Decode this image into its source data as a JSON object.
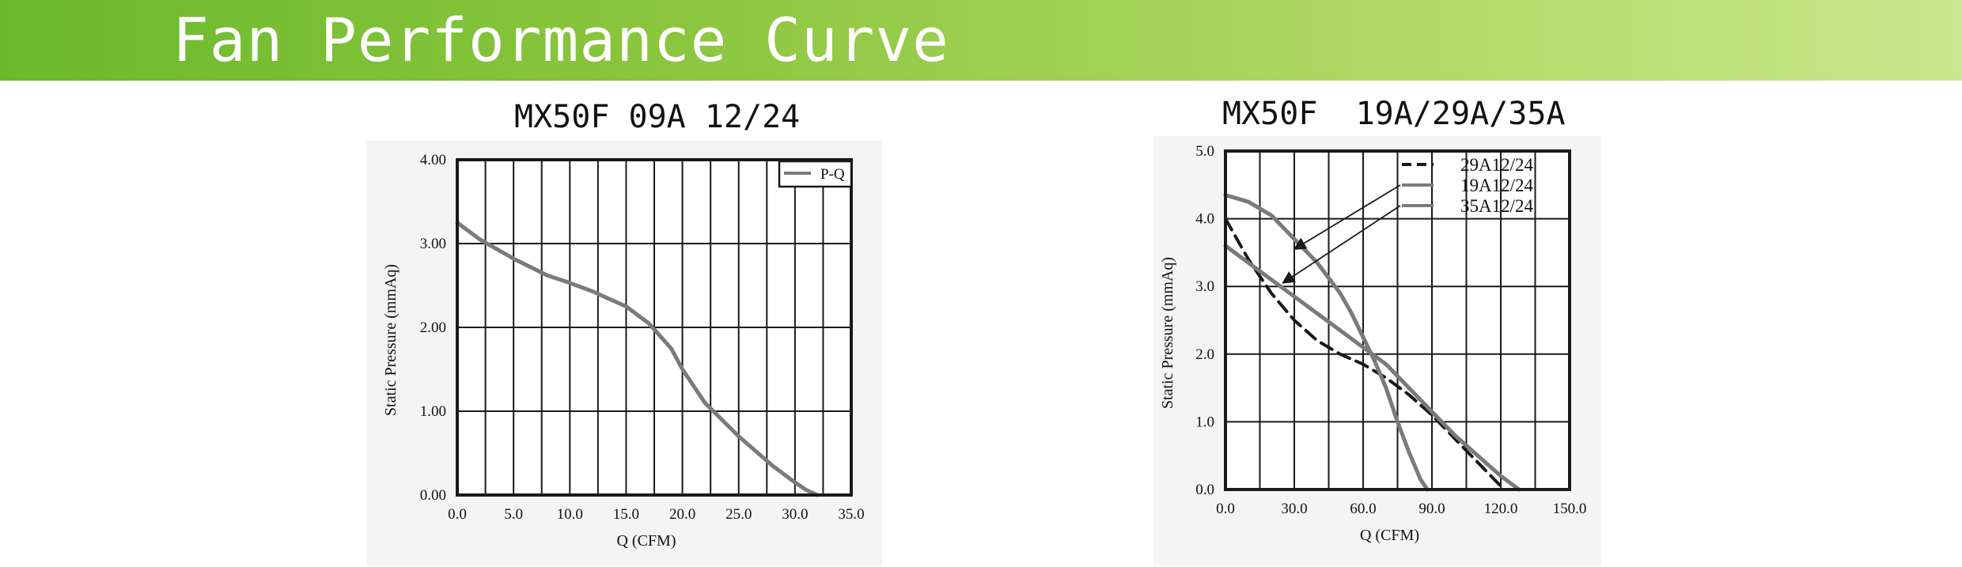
{
  "page": {
    "title": "Fan Performance Curve",
    "banner_color": "#8cc63f"
  },
  "chart_data": [
    {
      "type": "line",
      "title": "MX50F 09A 12/24",
      "xlabel": "Q (CFM)",
      "ylabel": "Static Pressure (mmAq)",
      "xlim": [
        0,
        35
      ],
      "ylim": [
        0,
        4
      ],
      "xticks": [
        "0.0",
        "5.0",
        "10.0",
        "15.0",
        "20.0",
        "25.0",
        "30.0",
        "35.0"
      ],
      "yticks": [
        "0.00",
        "1.00",
        "2.00",
        "3.00",
        "4.00"
      ],
      "grid": true,
      "legend": "top-right",
      "series": [
        {
          "name": "P-Q",
          "color": "#7a7a7a",
          "dash": "solid",
          "x": [
            0,
            2,
            5,
            8,
            10,
            12,
            15,
            17,
            19,
            20,
            22,
            25,
            28,
            30,
            31,
            32
          ],
          "y": [
            3.25,
            3.05,
            2.82,
            2.62,
            2.53,
            2.43,
            2.25,
            2.05,
            1.75,
            1.5,
            1.1,
            0.7,
            0.35,
            0.15,
            0.06,
            0.0
          ]
        }
      ]
    },
    {
      "type": "line",
      "title": "MX50F  19A/29A/35A",
      "xlabel": "Q (CFM)",
      "ylabel": "Static Pressure (mmAq)",
      "xlim": [
        0,
        150
      ],
      "ylim": [
        0,
        5
      ],
      "xticks": [
        "0.0",
        "30.0",
        "60.0",
        "90.0",
        "120.0",
        "150.0"
      ],
      "yticks": [
        "0.0",
        "1.0",
        "2.0",
        "3.0",
        "4.0",
        "5.0"
      ],
      "grid": true,
      "legend": "top-right",
      "series": [
        {
          "name": "29A12/24",
          "color": "#1a1a1a",
          "dash": "dashed",
          "x": [
            0,
            10,
            20,
            30,
            40,
            50,
            60,
            70,
            80,
            90,
            100,
            110,
            120
          ],
          "y": [
            4.0,
            3.4,
            2.9,
            2.5,
            2.2,
            2.0,
            1.85,
            1.65,
            1.4,
            1.1,
            0.75,
            0.4,
            0.05
          ]
        },
        {
          "name": "19A12/24",
          "color": "#7a7a7a",
          "dash": "solid",
          "x": [
            0,
            10,
            20,
            30,
            40,
            50,
            55,
            60,
            65,
            70,
            75,
            80,
            85,
            88
          ],
          "y": [
            4.35,
            4.25,
            4.05,
            3.7,
            3.35,
            2.9,
            2.6,
            2.25,
            1.9,
            1.5,
            1.0,
            0.55,
            0.15,
            0.0
          ]
        },
        {
          "name": "35A12/24",
          "color": "#7a7a7a",
          "dash": "solid",
          "x": [
            0,
            10,
            20,
            30,
            40,
            50,
            60,
            70,
            80,
            90,
            100,
            110,
            120,
            128
          ],
          "y": [
            3.6,
            3.35,
            3.1,
            2.85,
            2.6,
            2.35,
            2.1,
            1.85,
            1.5,
            1.15,
            0.8,
            0.5,
            0.2,
            0.0
          ]
        }
      ]
    }
  ]
}
